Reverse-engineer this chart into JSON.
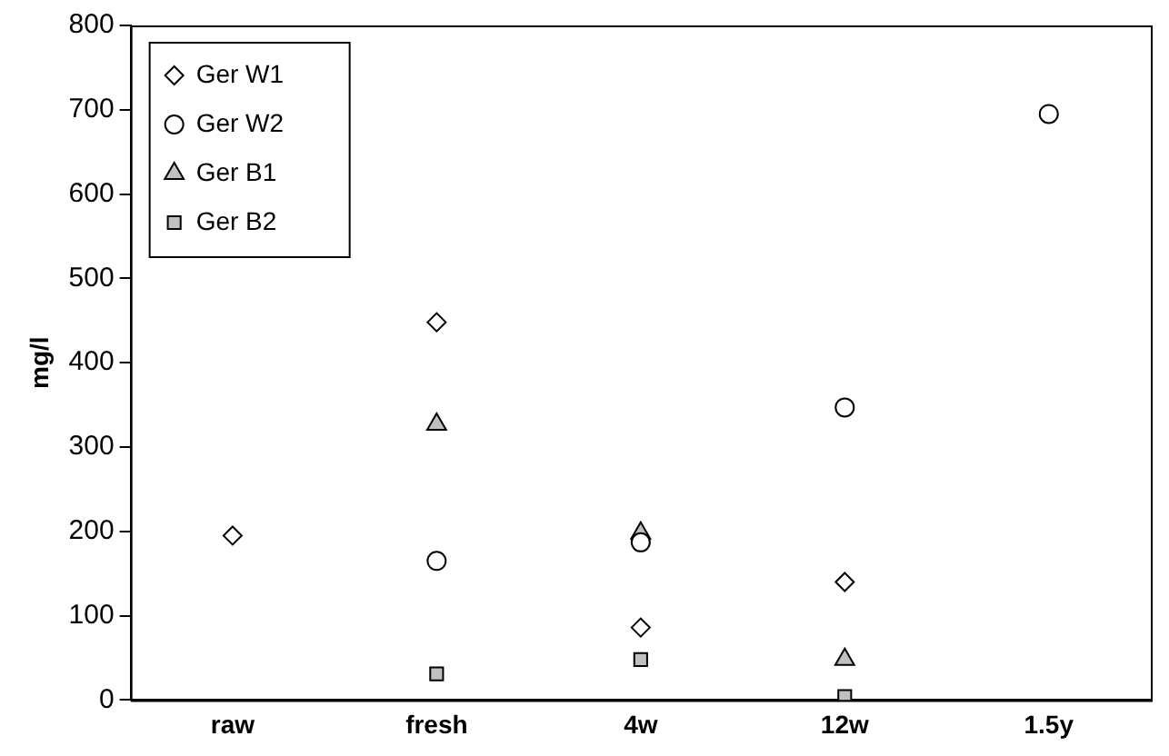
{
  "chart_data": {
    "type": "scatter",
    "ylabel": "mg/l",
    "categories": [
      "raw",
      "fresh",
      "4w",
      "12w",
      "1.5y"
    ],
    "series": [
      {
        "name": "Ger W1",
        "color": "#ffffff",
        "marker": "diamond",
        "values": [
          195,
          448,
          86,
          140,
          null
        ]
      },
      {
        "name": "Ger W2",
        "color": "#ffffff",
        "marker": "circle",
        "values": [
          null,
          165,
          187,
          347,
          695
        ]
      },
      {
        "name": "Ger B1",
        "color": "#c0c0c0",
        "marker": "triangle",
        "values": [
          null,
          327,
          198,
          48,
          null
        ]
      },
      {
        "name": "Ger B2",
        "color": "#c0c0c0",
        "marker": "square",
        "values": [
          null,
          31,
          48,
          4,
          null
        ]
      }
    ],
    "ylim": [
      0,
      800
    ],
    "yticks": [
      0,
      100,
      200,
      300,
      400,
      500,
      600,
      700,
      800
    ],
    "grid": false,
    "legend": "top left"
  }
}
